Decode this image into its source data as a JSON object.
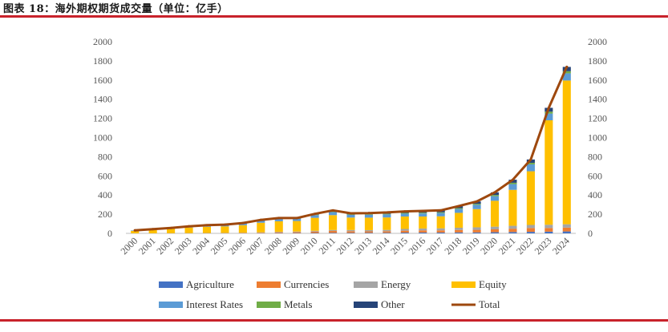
{
  "title": "图表 18：海外期权期货成交量（单位：亿手）",
  "chart_data": {
    "type": "bar",
    "stacked": true,
    "title": "图表 18：海外期权期货成交量（单位：亿手）",
    "ylim": [
      0,
      2000
    ],
    "y_ticks": [
      "0",
      "200",
      "400",
      "600",
      "800",
      "1000",
      "1200",
      "1400",
      "1600",
      "1800",
      "2000"
    ],
    "y2_ticks": [
      "0",
      "200",
      "400",
      "600",
      "800",
      "1000",
      "1200",
      "1400",
      "1600",
      "1800",
      "2000"
    ],
    "categories": [
      "2000",
      "2001",
      "2002",
      "2003",
      "2004",
      "2005",
      "2006",
      "2007",
      "2008",
      "2009",
      "2010",
      "2011",
      "2012",
      "2013",
      "2014",
      "2015",
      "2016",
      "2017",
      "2018",
      "2019",
      "2020",
      "2021",
      "2022",
      "2023",
      "2024"
    ],
    "series": [
      {
        "name": "Agriculture",
        "color": "#4472c4",
        "values": [
          0,
          0,
          0,
          0,
          0,
          1,
          1,
          2,
          3,
          3,
          4,
          5,
          5,
          6,
          6,
          8,
          9,
          9,
          10,
          10,
          12,
          14,
          16,
          18,
          20
        ]
      },
      {
        "name": "Currencies",
        "color": "#ed7d31",
        "values": [
          0,
          0,
          1,
          1,
          2,
          2,
          3,
          5,
          8,
          9,
          15,
          20,
          18,
          15,
          16,
          20,
          22,
          22,
          25,
          27,
          30,
          35,
          40,
          38,
          40
        ]
      },
      {
        "name": "Energy",
        "color": "#a5a5a5",
        "values": [
          1,
          1,
          1,
          2,
          2,
          2,
          3,
          4,
          5,
          7,
          8,
          10,
          12,
          13,
          14,
          18,
          20,
          22,
          24,
          26,
          28,
          30,
          32,
          34,
          35
        ]
      },
      {
        "name": "Equity",
        "color": "#ffc000",
        "values": [
          25,
          35,
          45,
          58,
          65,
          68,
          78,
          100,
          110,
          110,
          135,
          155,
          130,
          130,
          130,
          130,
          125,
          125,
          155,
          190,
          270,
          375,
          560,
          1090,
          1500
        ]
      },
      {
        "name": "Interest Rates",
        "color": "#5b9bd5",
        "values": [
          5,
          8,
          10,
          12,
          14,
          16,
          20,
          25,
          27,
          22,
          28,
          32,
          28,
          30,
          32,
          30,
          32,
          34,
          40,
          45,
          48,
          60,
          72,
          70,
          75
        ]
      },
      {
        "name": "Metals",
        "color": "#70ad47",
        "values": [
          0,
          0,
          0,
          0,
          1,
          1,
          1,
          2,
          3,
          3,
          5,
          6,
          6,
          6,
          6,
          7,
          8,
          8,
          9,
          10,
          12,
          14,
          16,
          20,
          22
        ]
      },
      {
        "name": "Other",
        "color": "#264478",
        "values": [
          0,
          0,
          0,
          1,
          1,
          1,
          2,
          3,
          4,
          6,
          8,
          12,
          10,
          12,
          14,
          16,
          18,
          20,
          22,
          25,
          28,
          32,
          35,
          40,
          45
        ]
      }
    ],
    "line": {
      "name": "Total",
      "color": "#9e480e",
      "values": [
        31,
        44,
        57,
        74,
        85,
        91,
        108,
        141,
        160,
        160,
        203,
        240,
        209,
        212,
        218,
        229,
        234,
        240,
        285,
        333,
        428,
        560,
        771,
        1310,
        1737
      ]
    },
    "legend_position": "bottom",
    "grid": false
  }
}
